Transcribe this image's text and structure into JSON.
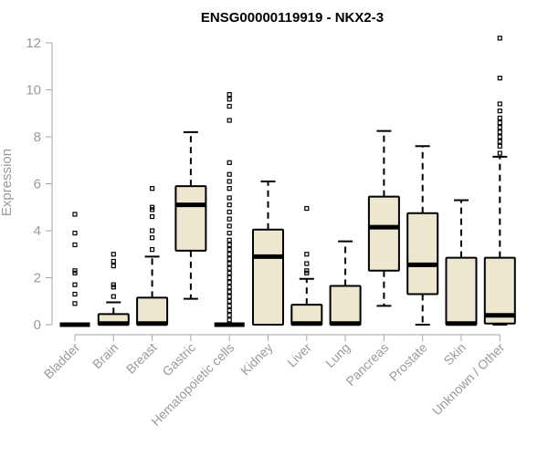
{
  "chart_data": {
    "type": "box",
    "title": "ENSG00000119919 - NKX2-3",
    "xlabel": "",
    "ylabel": "Expression",
    "ylim": [
      0,
      12
    ],
    "yticks": [
      "0",
      "2",
      "4",
      "6",
      "8",
      "10",
      "12"
    ],
    "categories": [
      "Bladder",
      "Brain",
      "Breast",
      "Gastric",
      "Hematopoietic cells",
      "Kidney",
      "Liver",
      "Lung",
      "Pancreas",
      "Prostate",
      "Skin",
      "Unknown / Other"
    ],
    "boxes": [
      {
        "min": 0,
        "q1": 0,
        "median": 0,
        "q3": 0,
        "max": 0,
        "outliers": [
          0.9,
          1.3,
          1.7,
          2.2,
          2.3,
          3.4,
          3.9,
          4.7
        ]
      },
      {
        "min": 0,
        "q1": 0,
        "median": 0.05,
        "q3": 0.45,
        "max": 0.95,
        "outliers": [
          1.2,
          1.6,
          1.7,
          2.5,
          2.7,
          3.0
        ]
      },
      {
        "min": 0,
        "q1": 0,
        "median": 0.05,
        "q3": 1.15,
        "max": 2.9,
        "outliers": [
          3.2,
          3.7,
          4.0,
          4.6,
          4.9,
          5.0,
          5.8
        ]
      },
      {
        "min": 1.1,
        "q1": 3.15,
        "median": 5.1,
        "q3": 5.9,
        "max": 8.2,
        "outliers": []
      },
      {
        "min": 0,
        "q1": 0,
        "median": 0,
        "q3": 0,
        "max": 0,
        "outliers": [
          0.2,
          0.4,
          0.6,
          0.8,
          1.0,
          1.2,
          1.4,
          1.6,
          1.8,
          2.0,
          2.2,
          2.4,
          2.6,
          2.8,
          3.0,
          3.2,
          3.4,
          3.6,
          3.9,
          4.2,
          4.5,
          4.8,
          5.1,
          5.4,
          5.8,
          6.1,
          6.4,
          6.9,
          8.7,
          9.3,
          9.6,
          9.8
        ]
      },
      {
        "min": 0,
        "q1": 0,
        "median": 2.9,
        "q3": 4.05,
        "max": 6.1,
        "outliers": []
      },
      {
        "min": 0,
        "q1": 0,
        "median": 0.05,
        "q3": 0.85,
        "max": 1.95,
        "outliers": [
          2.2,
          2.3,
          2.6,
          3.0,
          4.95
        ]
      },
      {
        "min": 0,
        "q1": 0,
        "median": 0.05,
        "q3": 1.65,
        "max": 3.55,
        "outliers": []
      },
      {
        "min": 0.8,
        "q1": 2.3,
        "median": 4.15,
        "q3": 5.45,
        "max": 8.25,
        "outliers": []
      },
      {
        "min": 0,
        "q1": 1.3,
        "median": 2.55,
        "q3": 4.75,
        "max": 7.6,
        "outliers": []
      },
      {
        "min": 0,
        "q1": 0,
        "median": 0.05,
        "q3": 2.85,
        "max": 5.3,
        "outliers": []
      },
      {
        "min": 0,
        "q1": 0.05,
        "median": 0.4,
        "q3": 2.85,
        "max": 7.15,
        "outliers": [
          7.3,
          7.6,
          7.8,
          8.0,
          8.2,
          8.4,
          8.6,
          8.8,
          9.1,
          9.4,
          10.5,
          12.2
        ]
      }
    ],
    "colors": {
      "box_fill": "#ede7cf",
      "box_stroke": "#000000",
      "axis": "#a6a6a6",
      "tick_text": "#9a9a9a",
      "title": "#000000"
    }
  }
}
